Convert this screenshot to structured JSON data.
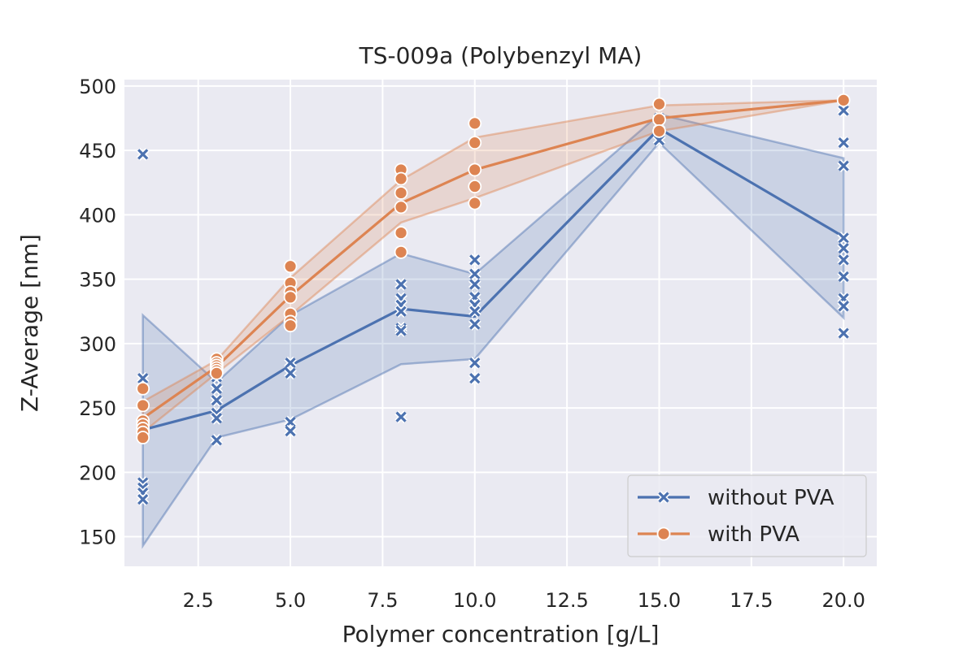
{
  "chart_data": {
    "type": "line",
    "title": "TS-009a (Polybenzyl MA)",
    "xlabel": "Polymer concentration [g/L]",
    "ylabel": "Z-Average [nm]",
    "xlim": [
      0.5,
      20.9
    ],
    "ylim": [
      127,
      505
    ],
    "xticks": [
      2.5,
      5.0,
      7.5,
      10.0,
      12.5,
      15.0,
      17.5,
      20.0
    ],
    "xtick_labels": [
      "2.5",
      "5.0",
      "7.5",
      "10.0",
      "12.5",
      "15.0",
      "17.5",
      "20.0"
    ],
    "yticks": [
      150,
      200,
      250,
      300,
      350,
      400,
      450,
      500
    ],
    "ytick_labels": [
      "150",
      "200",
      "250",
      "300",
      "350",
      "400",
      "450",
      "500"
    ],
    "grid": true,
    "legend_position": "bottom-right",
    "series": [
      {
        "name": "without PVA",
        "color": "#4c72b0",
        "marker": "x",
        "x": [
          1,
          3,
          5,
          8,
          10,
          15,
          20
        ],
        "mean": [
          233,
          248,
          283,
          327,
          321,
          467,
          383
        ],
        "ci_lower": [
          143,
          227,
          241,
          284,
          288,
          456,
          320
        ],
        "ci_upper": [
          322,
          270,
          322,
          370,
          354,
          478,
          444
        ],
        "points": [
          [
            1,
            447
          ],
          [
            1,
            273
          ],
          [
            1,
            192
          ],
          [
            1,
            188
          ],
          [
            1,
            184
          ],
          [
            1,
            179
          ],
          [
            3,
            274
          ],
          [
            3,
            265
          ],
          [
            3,
            256
          ],
          [
            3,
            246
          ],
          [
            3,
            242
          ],
          [
            3,
            225
          ],
          [
            5,
            285
          ],
          [
            5,
            277
          ],
          [
            5,
            239
          ],
          [
            5,
            232
          ],
          [
            8,
            346
          ],
          [
            8,
            335
          ],
          [
            8,
            330
          ],
          [
            8,
            325
          ],
          [
            8,
            312
          ],
          [
            8,
            310
          ],
          [
            8,
            243
          ],
          [
            10,
            365
          ],
          [
            10,
            354
          ],
          [
            10,
            346
          ],
          [
            10,
            336
          ],
          [
            10,
            330
          ],
          [
            10,
            325
          ],
          [
            10,
            315
          ],
          [
            10,
            285
          ],
          [
            10,
            273
          ],
          [
            15,
            475
          ],
          [
            15,
            470
          ],
          [
            15,
            462
          ],
          [
            15,
            458
          ],
          [
            20,
            481
          ],
          [
            20,
            456
          ],
          [
            20,
            438
          ],
          [
            20,
            382
          ],
          [
            20,
            374
          ],
          [
            20,
            365
          ],
          [
            20,
            352
          ],
          [
            20,
            335
          ],
          [
            20,
            329
          ],
          [
            20,
            308
          ]
        ]
      },
      {
        "name": "with PVA",
        "color": "#dd8452",
        "marker": "o",
        "x": [
          1,
          3,
          5,
          8,
          10,
          15,
          20
        ],
        "mean": [
          242,
          282,
          337,
          409,
          435,
          475,
          489
        ],
        "ci_lower": [
          231,
          277,
          322,
          394,
          413,
          465,
          489
        ],
        "ci_upper": [
          255,
          287,
          351,
          427,
          460,
          485,
          489
        ],
        "points": [
          [
            1,
            265
          ],
          [
            1,
            252
          ],
          [
            1,
            240
          ],
          [
            1,
            237
          ],
          [
            1,
            234
          ],
          [
            1,
            231
          ],
          [
            1,
            227
          ],
          [
            3,
            288
          ],
          [
            3,
            285
          ],
          [
            3,
            283
          ],
          [
            3,
            281
          ],
          [
            3,
            279
          ],
          [
            3,
            277
          ],
          [
            5,
            360
          ],
          [
            5,
            347
          ],
          [
            5,
            340
          ],
          [
            5,
            336
          ],
          [
            5,
            323
          ],
          [
            5,
            317
          ],
          [
            5,
            314
          ],
          [
            8,
            435
          ],
          [
            8,
            428
          ],
          [
            8,
            417
          ],
          [
            8,
            406
          ],
          [
            8,
            386
          ],
          [
            8,
            371
          ],
          [
            10,
            471
          ],
          [
            10,
            456
          ],
          [
            10,
            435
          ],
          [
            10,
            422
          ],
          [
            10,
            409
          ],
          [
            15,
            486
          ],
          [
            15,
            474
          ],
          [
            15,
            465
          ],
          [
            20,
            489
          ]
        ]
      }
    ]
  }
}
